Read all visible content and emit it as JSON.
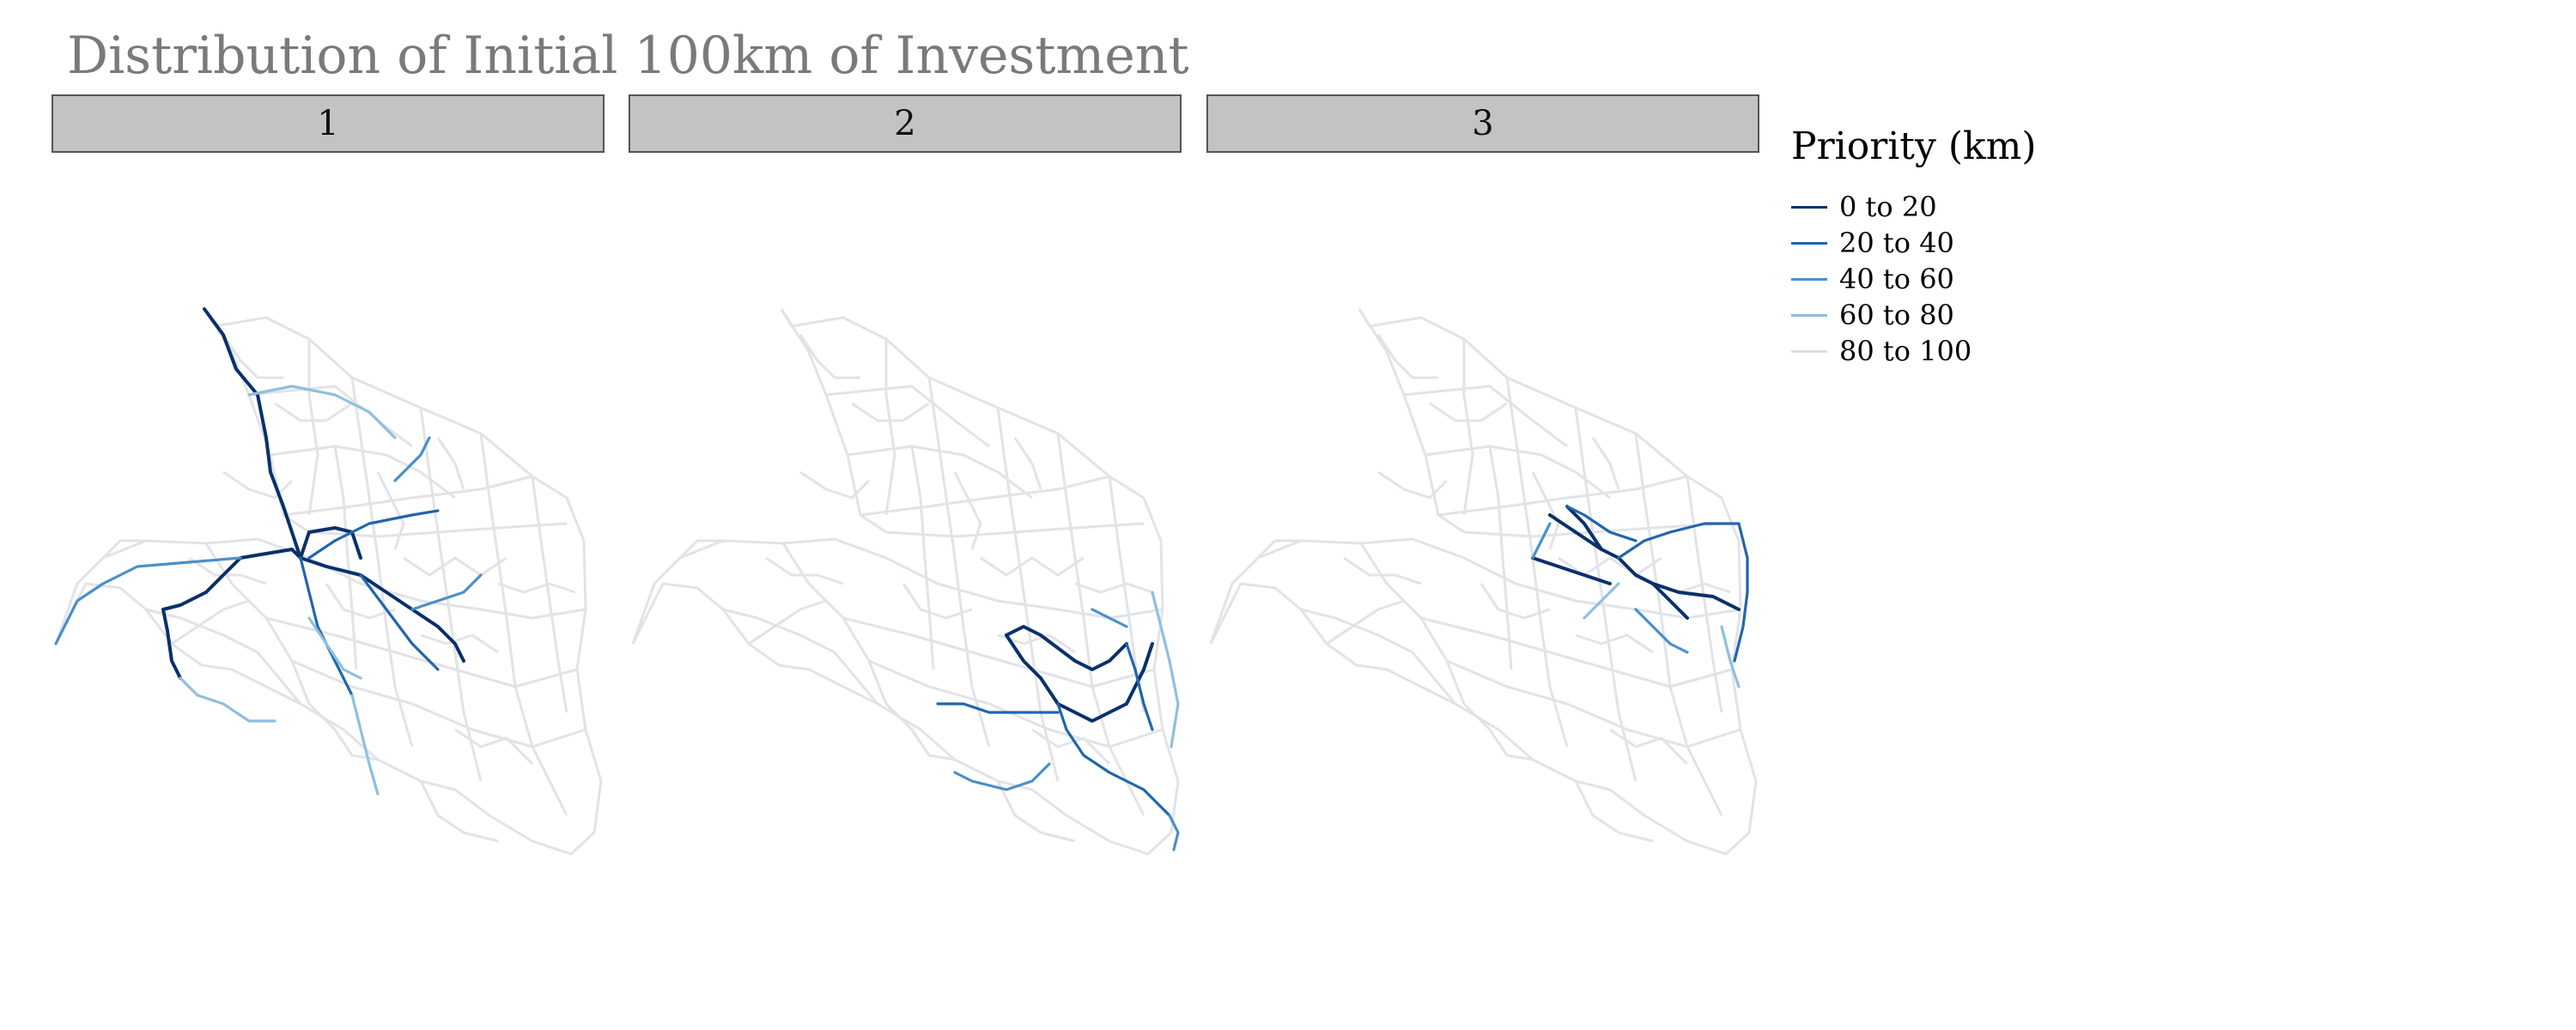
{
  "title": "Distribution of Initial 100km of Investment",
  "panels": [
    {
      "label": "1",
      "highlight": "west"
    },
    {
      "label": "2",
      "highlight": "south"
    },
    {
      "label": "3",
      "highlight": "east"
    }
  ],
  "legend": {
    "title": "Priority (km)",
    "items": [
      {
        "label": "0 to 20",
        "color": "#08306b"
      },
      {
        "label": "20 to 40",
        "color": "#2166ac"
      },
      {
        "label": "40 to 60",
        "color": "#4a90c8"
      },
      {
        "label": "60 to 80",
        "color": "#8fbfdf"
      },
      {
        "label": "80 to 100",
        "color": "#dcdee6"
      }
    ]
  },
  "colors": {
    "base_network": "#e2e3e8",
    "strip_fill": "#c3c3c3",
    "title": "#7a7a7a"
  }
}
